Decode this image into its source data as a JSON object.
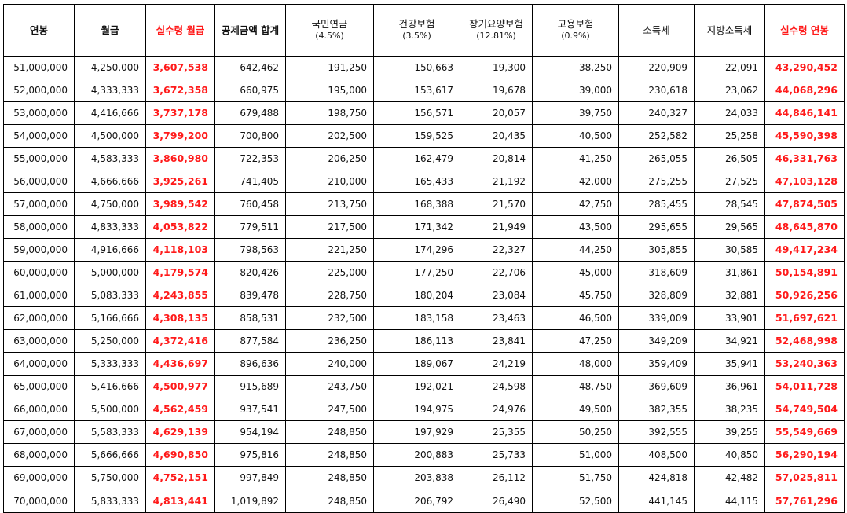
{
  "headers": [
    {
      "label": "연봉",
      "sub": "",
      "style": "bold"
    },
    {
      "label": "월급",
      "sub": "",
      "style": "bold"
    },
    {
      "label": "실수령 월급",
      "sub": "",
      "style": "red"
    },
    {
      "label": "공제금액 합계",
      "sub": "",
      "style": "bold"
    },
    {
      "label": "국민연금",
      "sub": "(4.5%)",
      "style": "normal"
    },
    {
      "label": "건강보험",
      "sub": "(3.5%)",
      "style": "normal"
    },
    {
      "label": "장기요양보험",
      "sub": "(12.81%)",
      "style": "normal"
    },
    {
      "label": "고용보험",
      "sub": "(0.9%)",
      "style": "normal"
    },
    {
      "label": "소득세",
      "sub": "",
      "style": "normal"
    },
    {
      "label": "지방소득세",
      "sub": "",
      "style": "normal"
    },
    {
      "label": "실수령 연봉",
      "sub": "",
      "style": "red"
    }
  ],
  "accent_color": "#ff1a1a",
  "rows": [
    [
      "51,000,000",
      "4,250,000",
      "3,607,538",
      "642,462",
      "191,250",
      "150,663",
      "19,300",
      "38,250",
      "220,909",
      "22,091",
      "43,290,452"
    ],
    [
      "52,000,000",
      "4,333,333",
      "3,672,358",
      "660,975",
      "195,000",
      "153,617",
      "19,678",
      "39,000",
      "230,618",
      "23,062",
      "44,068,296"
    ],
    [
      "53,000,000",
      "4,416,666",
      "3,737,178",
      "679,488",
      "198,750",
      "156,571",
      "20,057",
      "39,750",
      "240,327",
      "24,033",
      "44,846,141"
    ],
    [
      "54,000,000",
      "4,500,000",
      "3,799,200",
      "700,800",
      "202,500",
      "159,525",
      "20,435",
      "40,500",
      "252,582",
      "25,258",
      "45,590,398"
    ],
    [
      "55,000,000",
      "4,583,333",
      "3,860,980",
      "722,353",
      "206,250",
      "162,479",
      "20,814",
      "41,250",
      "265,055",
      "26,505",
      "46,331,763"
    ],
    [
      "56,000,000",
      "4,666,666",
      "3,925,261",
      "741,405",
      "210,000",
      "165,433",
      "21,192",
      "42,000",
      "275,255",
      "27,525",
      "47,103,128"
    ],
    [
      "57,000,000",
      "4,750,000",
      "3,989,542",
      "760,458",
      "213,750",
      "168,388",
      "21,570",
      "42,750",
      "285,455",
      "28,545",
      "47,874,505"
    ],
    [
      "58,000,000",
      "4,833,333",
      "4,053,822",
      "779,511",
      "217,500",
      "171,342",
      "21,949",
      "43,500",
      "295,655",
      "29,565",
      "48,645,870"
    ],
    [
      "59,000,000",
      "4,916,666",
      "4,118,103",
      "798,563",
      "221,250",
      "174,296",
      "22,327",
      "44,250",
      "305,855",
      "30,585",
      "49,417,234"
    ],
    [
      "60,000,000",
      "5,000,000",
      "4,179,574",
      "820,426",
      "225,000",
      "177,250",
      "22,706",
      "45,000",
      "318,609",
      "31,861",
      "50,154,891"
    ],
    [
      "61,000,000",
      "5,083,333",
      "4,243,855",
      "839,478",
      "228,750",
      "180,204",
      "23,084",
      "45,750",
      "328,809",
      "32,881",
      "50,926,256"
    ],
    [
      "62,000,000",
      "5,166,666",
      "4,308,135",
      "858,531",
      "232,500",
      "183,158",
      "23,463",
      "46,500",
      "339,009",
      "33,901",
      "51,697,621"
    ],
    [
      "63,000,000",
      "5,250,000",
      "4,372,416",
      "877,584",
      "236,250",
      "186,113",
      "23,841",
      "47,250",
      "349,209",
      "34,921",
      "52,468,998"
    ],
    [
      "64,000,000",
      "5,333,333",
      "4,436,697",
      "896,636",
      "240,000",
      "189,067",
      "24,219",
      "48,000",
      "359,409",
      "35,941",
      "53,240,363"
    ],
    [
      "65,000,000",
      "5,416,666",
      "4,500,977",
      "915,689",
      "243,750",
      "192,021",
      "24,598",
      "48,750",
      "369,609",
      "36,961",
      "54,011,728"
    ],
    [
      "66,000,000",
      "5,500,000",
      "4,562,459",
      "937,541",
      "247,500",
      "194,975",
      "24,976",
      "49,500",
      "382,355",
      "38,235",
      "54,749,504"
    ],
    [
      "67,000,000",
      "5,583,333",
      "4,629,139",
      "954,194",
      "248,850",
      "197,929",
      "25,355",
      "50,250",
      "392,555",
      "39,255",
      "55,549,669"
    ],
    [
      "68,000,000",
      "5,666,666",
      "4,690,850",
      "975,816",
      "248,850",
      "200,883",
      "25,733",
      "51,000",
      "408,500",
      "40,850",
      "56,290,194"
    ],
    [
      "69,000,000",
      "5,750,000",
      "4,752,151",
      "997,849",
      "248,850",
      "203,838",
      "26,112",
      "51,750",
      "424,818",
      "42,482",
      "57,025,811"
    ],
    [
      "70,000,000",
      "5,833,333",
      "4,813,441",
      "1,019,892",
      "248,850",
      "206,792",
      "26,490",
      "52,500",
      "441,145",
      "44,115",
      "57,761,296"
    ]
  ]
}
